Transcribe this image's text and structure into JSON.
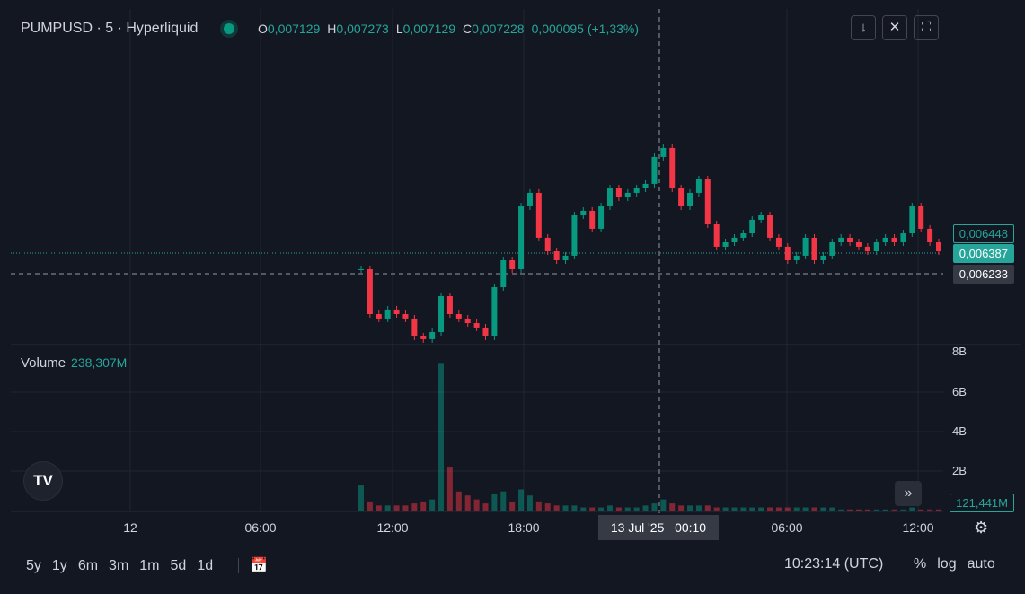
{
  "header": {
    "symbol": "PUMPUSD · 5 · Hyperliquid",
    "ohlc": [
      {
        "key": "O",
        "value": "0,007129"
      },
      {
        "key": "H",
        "value": "0,007273"
      },
      {
        "key": "L",
        "value": "0,007129"
      },
      {
        "key": "C",
        "value": "0,007228"
      }
    ],
    "change": "0,000095 (+1,33%)"
  },
  "price_labels": [
    "0,006448",
    "0,006387",
    "0,006233"
  ],
  "volume": {
    "label": "Volume",
    "value": "238,307M",
    "ticks": [
      "8B",
      "6B",
      "4B",
      "2B"
    ],
    "current": "121,441M"
  },
  "time_axis": [
    "12",
    "06:00",
    "12:00",
    "18:00",
    "06:00",
    "12:00"
  ],
  "crosshair": {
    "date": "13 Jul '25",
    "time": "00:10"
  },
  "ranges": [
    "5y",
    "1y",
    "6m",
    "3m",
    "1m",
    "5d",
    "1d"
  ],
  "clock": "10:23:14 (UTC)",
  "scale_options": [
    "%",
    "log",
    "auto"
  ],
  "price_series": {
    "ylim": [
      0.00571,
      0.007874
    ],
    "close": [
      0.006266,
      0.005931,
      0.005898,
      0.005965,
      0.005931,
      0.005898,
      0.005764,
      0.005744,
      0.005797,
      0.006065,
      0.005931,
      0.005898,
      0.005864,
      0.005831,
      0.005764,
      0.006132,
      0.006333,
      0.006266,
      0.006735,
      0.006836,
      0.006501,
      0.0064,
      0.006333,
      0.006367,
      0.006668,
      0.006702,
      0.006568,
      0.006735,
      0.006869,
      0.006802,
      0.006836,
      0.006869,
      0.006903,
      0.007104,
      0.007171,
      0.006869,
      0.006735,
      0.006836,
      0.006936,
      0.006601,
      0.006434,
      0.006467,
      0.006501,
      0.006534,
      0.006635,
      0.006668,
      0.006501,
      0.006434,
      0.006333,
      0.006367,
      0.006501,
      0.006333,
      0.006367,
      0.006467,
      0.006501,
      0.006467,
      0.006434,
      0.0064,
      0.006467,
      0.006501,
      0.006467,
      0.006534,
      0.006735,
      0.006568,
      0.006467,
      0.0064
    ],
    "volume_ylim": [
      0,
      8
    ],
    "volume": [
      1.3,
      0.5,
      0.3,
      0.3,
      0.3,
      0.3,
      0.4,
      0.5,
      0.6,
      7.4,
      2.2,
      1.0,
      0.8,
      0.6,
      0.4,
      0.9,
      1.0,
      0.5,
      1.1,
      0.8,
      0.5,
      0.4,
      0.3,
      0.3,
      0.3,
      0.2,
      0.2,
      0.2,
      0.3,
      0.2,
      0.2,
      0.2,
      0.3,
      0.4,
      0.6,
      0.4,
      0.3,
      0.3,
      0.3,
      0.3,
      0.2,
      0.2,
      0.2,
      0.2,
      0.2,
      0.2,
      0.2,
      0.2,
      0.2,
      0.2,
      0.2,
      0.2,
      0.2,
      0.2,
      0.1,
      0.1,
      0.1,
      0.1,
      0.1,
      0.1,
      0.1,
      0.1,
      0.2,
      0.1,
      0.1,
      0.1
    ]
  }
}
